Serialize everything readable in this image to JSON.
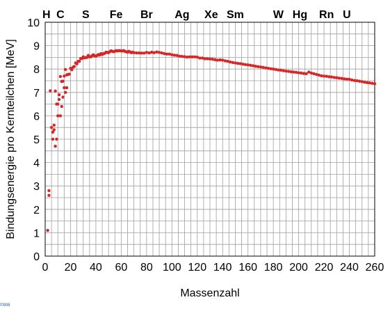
{
  "chart_data": {
    "type": "scatter",
    "title": "",
    "xlabel": "Massenzahl",
    "ylabel": "Bindungsenergie pro Kernteilchen [MeV]",
    "xlim": [
      0,
      260
    ],
    "ylim": [
      0,
      10
    ],
    "x_ticks": [
      0,
      20,
      40,
      60,
      80,
      100,
      120,
      140,
      160,
      180,
      200,
      220,
      240,
      260
    ],
    "y_ticks": [
      0,
      1,
      2,
      3,
      4,
      5,
      6,
      7,
      8,
      9,
      10
    ],
    "x_minor_step": 5,
    "y_minor_step": 0.5,
    "grid": true,
    "legend": "none",
    "marker_color": "#d62728",
    "top_annotations": [
      {
        "label": "H",
        "x": 1
      },
      {
        "label": "C",
        "x": 12
      },
      {
        "label": "S",
        "x": 32
      },
      {
        "label": "Fe",
        "x": 56
      },
      {
        "label": "Br",
        "x": 80
      },
      {
        "label": "Ag",
        "x": 108
      },
      {
        "label": "Xe",
        "x": 131
      },
      {
        "label": "Sm",
        "x": 150
      },
      {
        "label": "W",
        "x": 184
      },
      {
        "label": "Hg",
        "x": 201
      },
      {
        "label": "Rn",
        "x": 222
      },
      {
        "label": "U",
        "x": 238
      }
    ],
    "series": [
      {
        "values": [
          [
            2,
            1.1
          ],
          [
            3,
            2.6
          ],
          [
            3,
            2.8
          ],
          [
            4,
            7.07
          ],
          [
            5,
            5.5
          ],
          [
            6,
            5.3
          ],
          [
            6,
            5.0
          ],
          [
            7,
            5.6
          ],
          [
            7,
            5.4
          ],
          [
            8,
            7.06
          ],
          [
            8,
            4.7
          ],
          [
            9,
            6.5
          ],
          [
            9,
            5.0
          ],
          [
            10,
            6.5
          ],
          [
            10,
            6.0
          ],
          [
            11,
            6.9
          ],
          [
            11,
            6.7
          ],
          [
            12,
            7.68
          ],
          [
            12,
            6.0
          ],
          [
            13,
            7.47
          ],
          [
            13,
            6.4
          ],
          [
            14,
            7.48
          ],
          [
            14,
            6.8
          ],
          [
            15,
            7.7
          ],
          [
            15,
            7.2
          ],
          [
            16,
            7.98
          ],
          [
            16,
            7.0
          ],
          [
            17,
            7.75
          ],
          [
            17,
            7.2
          ],
          [
            18,
            7.77
          ],
          [
            19,
            7.78
          ],
          [
            20,
            8.03
          ],
          [
            21,
            7.97
          ],
          [
            22,
            8.08
          ],
          [
            23,
            8.11
          ],
          [
            24,
            8.26
          ],
          [
            25,
            8.22
          ],
          [
            26,
            8.33
          ],
          [
            27,
            8.33
          ],
          [
            28,
            8.45
          ],
          [
            29,
            8.45
          ],
          [
            30,
            8.52
          ],
          [
            31,
            8.48
          ],
          [
            32,
            8.49
          ],
          [
            33,
            8.5
          ],
          [
            34,
            8.58
          ],
          [
            35,
            8.52
          ],
          [
            36,
            8.52
          ],
          [
            37,
            8.57
          ],
          [
            38,
            8.61
          ],
          [
            39,
            8.56
          ],
          [
            40,
            8.55
          ],
          [
            41,
            8.58
          ],
          [
            42,
            8.62
          ],
          [
            43,
            8.6
          ],
          [
            44,
            8.66
          ],
          [
            45,
            8.62
          ],
          [
            46,
            8.66
          ],
          [
            47,
            8.67
          ],
          [
            48,
            8.72
          ],
          [
            49,
            8.71
          ],
          [
            50,
            8.7
          ],
          [
            51,
            8.74
          ],
          [
            52,
            8.78
          ],
          [
            53,
            8.76
          ],
          [
            54,
            8.74
          ],
          [
            55,
            8.76
          ],
          [
            56,
            8.79
          ],
          [
            57,
            8.77
          ],
          [
            58,
            8.79
          ],
          [
            59,
            8.78
          ],
          [
            60,
            8.78
          ],
          [
            61,
            8.77
          ],
          [
            62,
            8.79
          ],
          [
            63,
            8.75
          ],
          [
            64,
            8.74
          ],
          [
            65,
            8.72
          ],
          [
            66,
            8.76
          ],
          [
            67,
            8.73
          ],
          [
            68,
            8.7
          ],
          [
            69,
            8.72
          ],
          [
            70,
            8.7
          ],
          [
            72,
            8.69
          ],
          [
            74,
            8.69
          ],
          [
            76,
            8.68
          ],
          [
            78,
            8.68
          ],
          [
            80,
            8.71
          ],
          [
            82,
            8.69
          ],
          [
            84,
            8.72
          ],
          [
            86,
            8.7
          ],
          [
            88,
            8.73
          ],
          [
            90,
            8.71
          ],
          [
            92,
            8.69
          ],
          [
            94,
            8.66
          ],
          [
            96,
            8.64
          ],
          [
            98,
            8.64
          ],
          [
            100,
            8.61
          ],
          [
            102,
            8.59
          ],
          [
            104,
            8.58
          ],
          [
            106,
            8.55
          ],
          [
            108,
            8.54
          ],
          [
            110,
            8.53
          ],
          [
            112,
            8.51
          ],
          [
            114,
            8.52
          ],
          [
            116,
            8.52
          ],
          [
            118,
            8.52
          ],
          [
            120,
            8.51
          ],
          [
            122,
            8.47
          ],
          [
            124,
            8.47
          ],
          [
            126,
            8.44
          ],
          [
            128,
            8.44
          ],
          [
            130,
            8.43
          ],
          [
            132,
            8.42
          ],
          [
            134,
            8.4
          ],
          [
            136,
            8.38
          ],
          [
            138,
            8.39
          ],
          [
            140,
            8.38
          ],
          [
            142,
            8.35
          ],
          [
            144,
            8.33
          ],
          [
            146,
            8.3
          ],
          [
            148,
            8.28
          ],
          [
            150,
            8.26
          ],
          [
            152,
            8.24
          ],
          [
            154,
            8.23
          ],
          [
            156,
            8.21
          ],
          [
            158,
            8.19
          ],
          [
            160,
            8.18
          ],
          [
            162,
            8.16
          ],
          [
            164,
            8.14
          ],
          [
            166,
            8.12
          ],
          [
            168,
            8.1
          ],
          [
            170,
            8.09
          ],
          [
            172,
            8.07
          ],
          [
            174,
            8.05
          ],
          [
            176,
            8.03
          ],
          [
            178,
            8.01
          ],
          [
            180,
            8.0
          ],
          [
            182,
            7.98
          ],
          [
            184,
            7.96
          ],
          [
            186,
            7.95
          ],
          [
            188,
            7.93
          ],
          [
            190,
            7.91
          ],
          [
            192,
            7.9
          ],
          [
            194,
            7.88
          ],
          [
            196,
            7.87
          ],
          [
            198,
            7.86
          ],
          [
            200,
            7.84
          ],
          [
            202,
            7.83
          ],
          [
            204,
            7.81
          ],
          [
            206,
            7.8
          ],
          [
            208,
            7.87
          ],
          [
            210,
            7.83
          ],
          [
            212,
            7.8
          ],
          [
            214,
            7.77
          ],
          [
            216,
            7.74
          ],
          [
            218,
            7.71
          ],
          [
            220,
            7.7
          ],
          [
            222,
            7.69
          ],
          [
            224,
            7.67
          ],
          [
            226,
            7.66
          ],
          [
            228,
            7.64
          ],
          [
            230,
            7.63
          ],
          [
            232,
            7.61
          ],
          [
            234,
            7.6
          ],
          [
            236,
            7.58
          ],
          [
            238,
            7.57
          ],
          [
            240,
            7.56
          ],
          [
            242,
            7.53
          ],
          [
            244,
            7.51
          ],
          [
            246,
            7.5
          ],
          [
            248,
            7.48
          ],
          [
            250,
            7.46
          ],
          [
            252,
            7.44
          ],
          [
            254,
            7.42
          ],
          [
            256,
            7.41
          ],
          [
            258,
            7.39
          ],
          [
            260,
            7.37
          ]
        ]
      }
    ]
  },
  "credit": "©908"
}
